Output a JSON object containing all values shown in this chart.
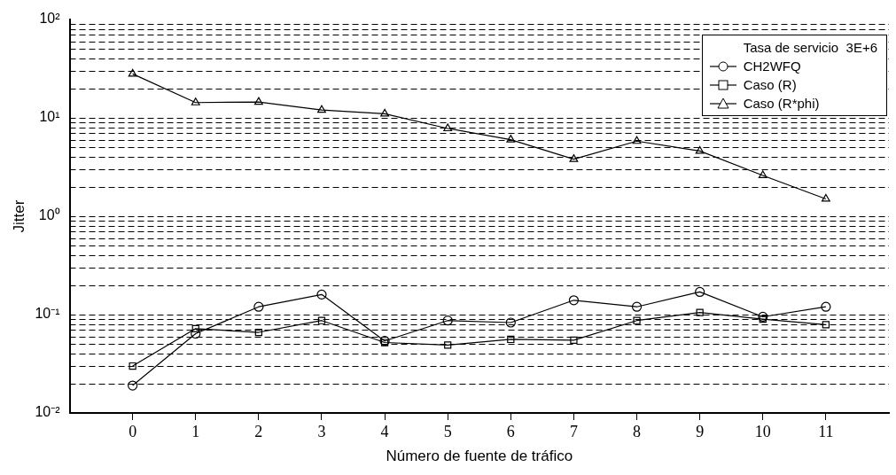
{
  "chart_data": {
    "type": "line",
    "xlabel": "Número de fuente de tráfico",
    "ylabel": "Jitter",
    "legend_title": "Tasa de servicio  3E+6",
    "legend": "top right",
    "log": "y",
    "grid": "y",
    "line_style": "solid",
    "x": [
      0,
      1,
      2,
      3,
      4,
      5,
      6,
      7,
      8,
      9,
      10,
      11
    ],
    "xlim": [
      -1,
      12
    ],
    "xticks": [
      0,
      1,
      2,
      3,
      4,
      5,
      6,
      7,
      8,
      9,
      10,
      11
    ],
    "ylim": [
      0.01,
      100
    ],
    "yticks": [
      {
        "value": 0.01,
        "label": "10⁻²"
      },
      {
        "value": 0.1,
        "label": "10⁻¹"
      },
      {
        "value": 1,
        "label": "10⁰"
      },
      {
        "value": 10,
        "label": "10¹"
      },
      {
        "value": 100,
        "label": "10²"
      }
    ],
    "series": [
      {
        "name": "CH2WFQ",
        "color": "#000000",
        "marker": "circle",
        "values": [
          0.019,
          0.064,
          0.12,
          0.16,
          0.054,
          0.087,
          0.083,
          0.14,
          0.12,
          0.17,
          0.095,
          0.12
        ]
      },
      {
        "name": "Caso (R)",
        "color": "#000000",
        "marker": "square",
        "values": [
          0.03,
          0.072,
          0.066,
          0.087,
          0.052,
          0.049,
          0.056,
          0.055,
          0.087,
          0.105,
          0.09,
          0.079
        ]
      },
      {
        "name": "Caso (R*phi)",
        "color": "#000000",
        "marker": "triangle",
        "values": [
          28,
          14.3,
          14.5,
          12,
          11,
          7.8,
          6,
          3.8,
          5.8,
          4.6,
          2.6,
          1.5
        ]
      }
    ]
  }
}
